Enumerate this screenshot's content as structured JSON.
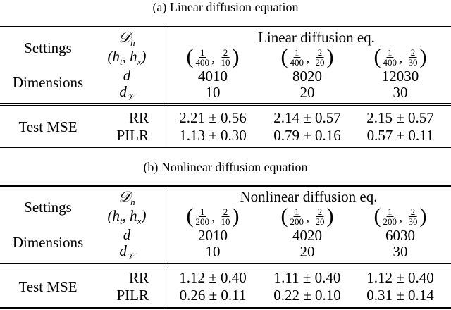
{
  "tables": [
    {
      "caption": "(a) Linear diffusion equation",
      "header": {
        "settings_label": "Settings",
        "dimensions_label": "Dimensions",
        "sym_D": "𝒟",
        "sym_D_sub": "h",
        "sym_hthx": "(h_t, h_x)",
        "sym_d": "d",
        "sym_dV": "d",
        "sym_dV_sub": "𝒱",
        "column_title": "Linear diffusion eq."
      },
      "columns": [
        {
          "ht_num": "1",
          "ht_den": "400",
          "hx_num": "2",
          "hx_den": "10",
          "d": "4010",
          "dV": "10"
        },
        {
          "ht_num": "1",
          "ht_den": "400",
          "hx_num": "2",
          "hx_den": "20",
          "d": "8020",
          "dV": "20"
        },
        {
          "ht_num": "1",
          "ht_den": "400",
          "hx_num": "2",
          "hx_den": "30",
          "d": "12030",
          "dV": "30"
        }
      ],
      "metric_label": "Test MSE",
      "rows": [
        {
          "method": "RR",
          "values": [
            "2.21 ± 0.56",
            "2.14 ± 0.57",
            "2.15 ± 0.57"
          ]
        },
        {
          "method": "PILR",
          "values": [
            "1.13 ± 0.30",
            "0.79 ± 0.16",
            "0.57 ± 0.11"
          ]
        }
      ]
    },
    {
      "caption": "(b) Nonlinear diffusion equation",
      "header": {
        "settings_label": "Settings",
        "dimensions_label": "Dimensions",
        "sym_D": "𝒟",
        "sym_D_sub": "h",
        "sym_hthx": "(h_t, h_x)",
        "sym_d": "d",
        "sym_dV": "d",
        "sym_dV_sub": "𝒱",
        "column_title": "Nonlinear diffusion eq."
      },
      "columns": [
        {
          "ht_num": "1",
          "ht_den": "200",
          "hx_num": "2",
          "hx_den": "10",
          "d": "2010",
          "dV": "10"
        },
        {
          "ht_num": "1",
          "ht_den": "200",
          "hx_num": "2",
          "hx_den": "20",
          "d": "4020",
          "dV": "20"
        },
        {
          "ht_num": "1",
          "ht_den": "200",
          "hx_num": "2",
          "hx_den": "30",
          "d": "6030",
          "dV": "30"
        }
      ],
      "metric_label": "Test MSE",
      "rows": [
        {
          "method": "RR",
          "values": [
            "1.12 ± 0.40",
            "1.11 ± 0.40",
            "1.12 ± 0.40"
          ]
        },
        {
          "method": "PILR",
          "values": [
            "0.26 ± 0.11",
            "0.22 ± 0.10",
            "0.31 ± 0.14"
          ]
        }
      ]
    }
  ]
}
